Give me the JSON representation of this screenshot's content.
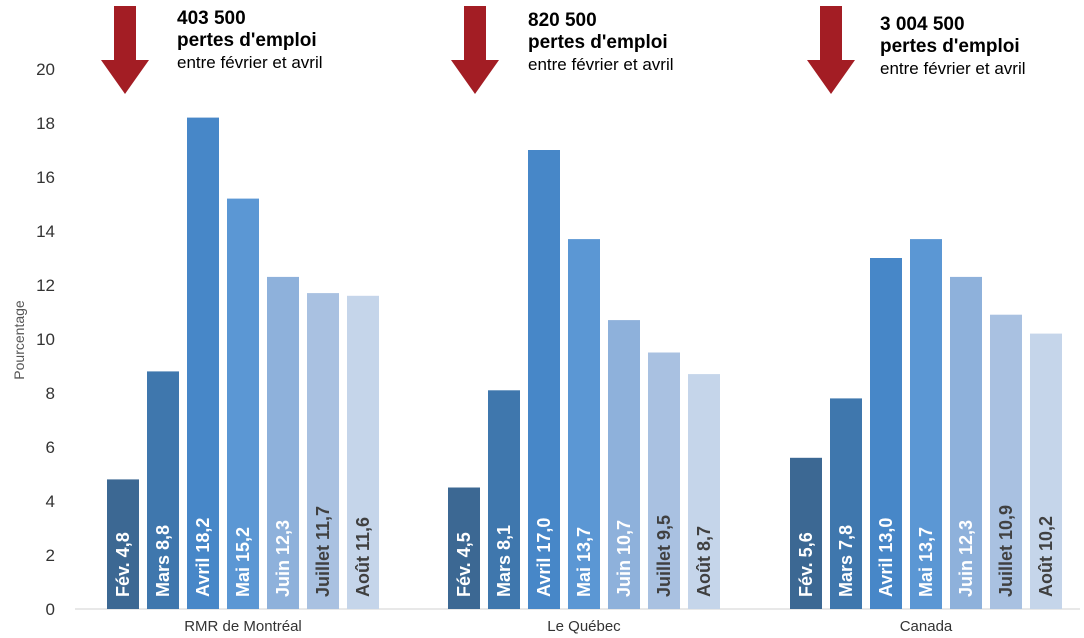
{
  "chart_data": {
    "type": "bar",
    "ylabel": "Pourcentage",
    "ylim": [
      0,
      20
    ],
    "yticks": [
      0,
      2,
      4,
      6,
      8,
      10,
      12,
      14,
      16,
      18,
      20
    ],
    "grid": false,
    "groups": [
      {
        "name": "RMR de Montréal",
        "bars": [
          {
            "label": "Fév. 4,8",
            "value": 4.8
          },
          {
            "label": "Mars 8,8",
            "value": 8.8
          },
          {
            "label": "Avril 18,2",
            "value": 18.2
          },
          {
            "label": "Mai 15,2",
            "value": 15.2
          },
          {
            "label": "Juin 12,3",
            "value": 12.3
          },
          {
            "label": "Juillet 11,7",
            "value": 11.7
          },
          {
            "label": "Août 11,6",
            "value": 11.6
          }
        ]
      },
      {
        "name": "Le Québec",
        "bars": [
          {
            "label": "Fév. 4,5",
            "value": 4.5
          },
          {
            "label": "Mars 8,1",
            "value": 8.1
          },
          {
            "label": "Avril 17,0",
            "value": 17.0
          },
          {
            "label": "Mai 13,7",
            "value": 13.7
          },
          {
            "label": "Juin 10,7",
            "value": 10.7
          },
          {
            "label": "Juillet 9,5",
            "value": 9.5
          },
          {
            "label": "Août 8,7",
            "value": 8.7
          }
        ]
      },
      {
        "name": "Canada",
        "bars": [
          {
            "label": "Fév. 5,6",
            "value": 5.6
          },
          {
            "label": "Mars 7,8",
            "value": 7.8
          },
          {
            "label": "Avril 13,0",
            "value": 13.0
          },
          {
            "label": "Mai 13,7",
            "value": 13.7
          },
          {
            "label": "Juin 12,3",
            "value": 12.3
          },
          {
            "label": "Juillet 10,9",
            "value": 10.9
          },
          {
            "label": "Août 10,2",
            "value": 10.2
          }
        ]
      }
    ],
    "month_colors": [
      "#3c6893",
      "#3f77ad",
      "#4787c8",
      "#5b97d4",
      "#8eb1db",
      "#a9c1e1",
      "#c5d5ea"
    ],
    "label_colors": [
      "#ffffff",
      "#ffffff",
      "#ffffff",
      "#ffffff",
      "#ffffff",
      "#404040",
      "#404040"
    ],
    "annotations": [
      {
        "number": "403 500",
        "line1": "pertes d'emploi",
        "line2": "entre février et avril"
      },
      {
        "number": "820 500",
        "line1": "pertes d'emploi",
        "line2": "entre février et avril"
      },
      {
        "number": "3 004 500",
        "line1": "pertes d'emploi",
        "line2": "entre février et avril"
      }
    ],
    "arrow_color": "#a31d24"
  }
}
